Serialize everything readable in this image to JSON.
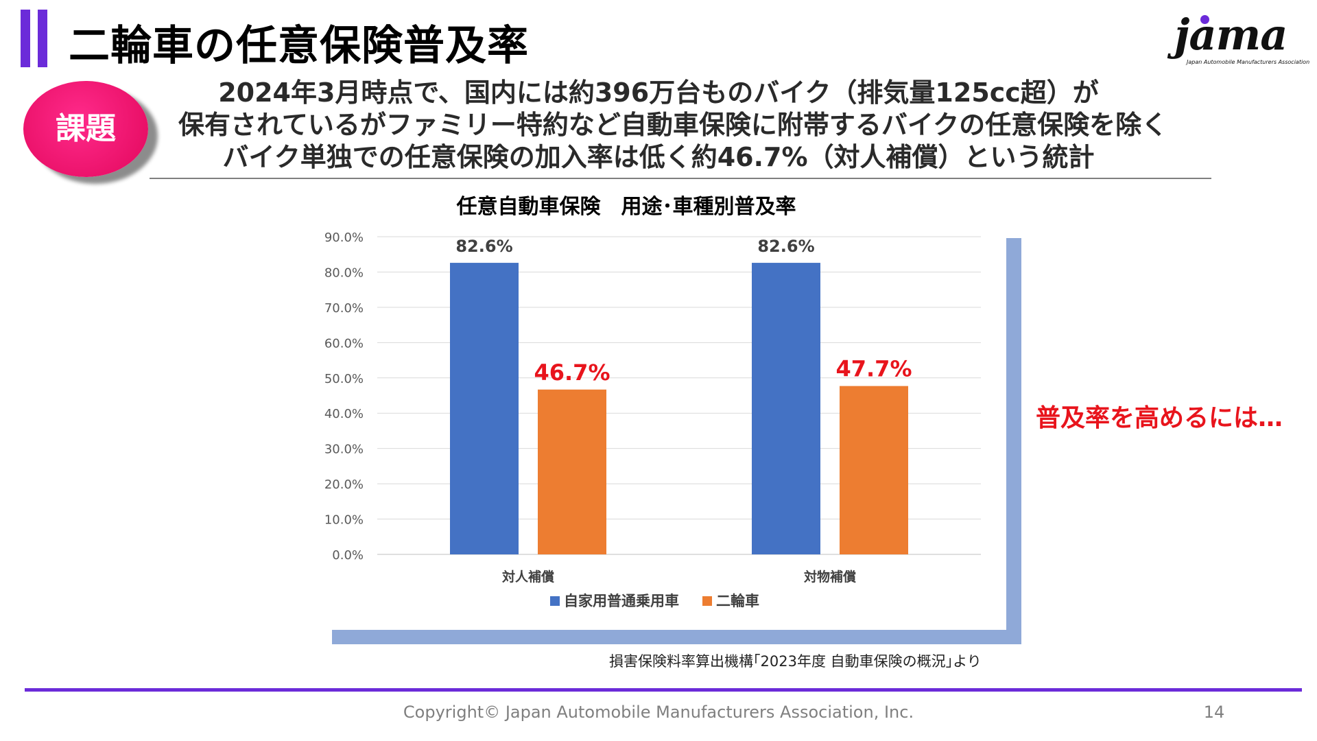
{
  "header": {
    "title": "二輪車の任意保険普及率",
    "accent_color": "#6b2bd9"
  },
  "logo": {
    "word": "jama",
    "subtitle": "Japan Automobile Manufacturers Association"
  },
  "badge": {
    "label": "課題",
    "color": "#e2075c"
  },
  "headline": {
    "lines": [
      "2024年3月時点で、国内には約396万台ものバイク（排気量125cc超）が",
      "保有されているがファミリー特約など自動車保険に附帯するバイクの任意保険を除く",
      "バイク単独での任意保険の加入率は低く約46.7%（対人補償）という統計"
    ]
  },
  "chart_data": {
    "type": "bar",
    "title": "任意自動車保険　用途･車種別普及率",
    "categories": [
      "対人補償",
      "対物補償"
    ],
    "series": [
      {
        "name": "自家用普通乗用車",
        "color": "#4472c4",
        "values": [
          82.6,
          82.6
        ],
        "labels": [
          "82.6%",
          "82.6%"
        ],
        "label_color": "#404040"
      },
      {
        "name": "二輪車",
        "color": "#ed7d31",
        "values": [
          46.7,
          47.7
        ],
        "labels": [
          "46.7%",
          "47.7%"
        ],
        "label_color": "#e8141c"
      }
    ],
    "ylim": [
      0,
      90
    ],
    "yticks": [
      0,
      10,
      20,
      30,
      40,
      50,
      60,
      70,
      80,
      90
    ],
    "ytick_labels": [
      "0.0%",
      "10.0%",
      "20.0%",
      "30.0%",
      "40.0%",
      "50.0%",
      "60.0%",
      "70.0%",
      "80.0%",
      "90.0%"
    ],
    "grid": true,
    "legend": "bottom"
  },
  "callout": "普及率を高めるには…",
  "source": "損害保険料率算出機構｢2023年度 自動車保険の概況｣より",
  "footer": {
    "copyright": "Copyright© Japan Automobile Manufacturers Association, Inc.",
    "page": "14"
  }
}
